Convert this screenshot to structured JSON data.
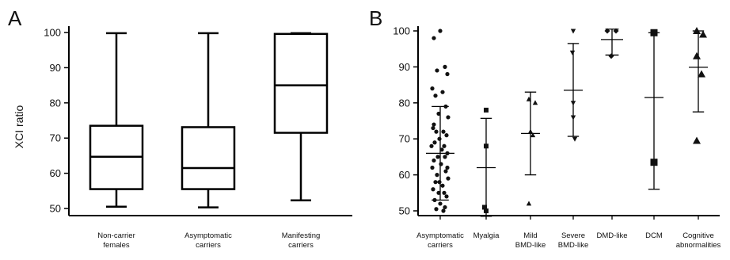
{
  "chart_data": [
    {
      "panel": "A",
      "type": "box",
      "ylabel": "XCI ratio",
      "ylim": [
        47,
        101
      ],
      "yticks": [
        50,
        60,
        70,
        80,
        90,
        100
      ],
      "categories": [
        [
          "Non-carrier",
          "females"
        ],
        [
          "Asymptomatic",
          "carriers"
        ],
        [
          "Manifesting",
          "carriers"
        ]
      ],
      "boxes": [
        {
          "min": 50.5,
          "q1": 55.5,
          "median": 64.7,
          "q3": 73.5,
          "max": 99.8
        },
        {
          "min": 50.3,
          "q1": 55.5,
          "median": 61.5,
          "q3": 73.1,
          "max": 99.8
        },
        {
          "min": 52.3,
          "q1": 71.5,
          "median": 85.0,
          "q3": 99.6,
          "max": 99.8
        }
      ],
      "grid": false
    },
    {
      "panel": "B",
      "type": "scatter",
      "ylim": [
        47,
        101
      ],
      "yticks": [
        50,
        60,
        70,
        80,
        90,
        100
      ],
      "categories": [
        [
          "Asymptomatic",
          "carriers"
        ],
        [
          "Myalgia"
        ],
        [
          "Mild",
          "BMD-like"
        ],
        [
          "Severe",
          "BMD-like"
        ],
        [
          "DMD-like"
        ],
        [
          "DCM"
        ],
        [
          "Cognitive",
          "abnormalities"
        ]
      ],
      "series": [
        {
          "marker": "circle",
          "mean": 66.0,
          "upper": 79.0,
          "lower": 53.0,
          "values": [
            100,
            98,
            90,
            89,
            88,
            84,
            83,
            82,
            79,
            77,
            76,
            73,
            72,
            72,
            71,
            70,
            69,
            68,
            68,
            67,
            66,
            65,
            65,
            64,
            63,
            62,
            61,
            60,
            59,
            58,
            57,
            56,
            55,
            55,
            54,
            53,
            52,
            51,
            50.5,
            50,
            74,
            62,
            58
          ]
        },
        {
          "marker": "square",
          "mean": 62.0,
          "upper": 75.7,
          "lower": 48.5,
          "values": [
            78,
            68,
            51,
            50
          ]
        },
        {
          "marker": "triangle-up",
          "mean": 71.5,
          "upper": 83.0,
          "lower": 60.0,
          "values": [
            81,
            80,
            72,
            71,
            52
          ]
        },
        {
          "marker": "triangle-down",
          "mean": 83.5,
          "upper": 96.5,
          "lower": 70.7,
          "values": [
            100,
            94,
            80,
            76,
            70
          ]
        },
        {
          "marker": "diamond",
          "mean": 97.6,
          "upper": 100.5,
          "lower": 93.3,
          "values": [
            100,
            100,
            93
          ]
        },
        {
          "marker": "square-large",
          "mean": 81.5,
          "upper": 99.5,
          "lower": 56.0,
          "values": [
            99.5,
            63.5
          ]
        },
        {
          "marker": "triangle-large",
          "mean": 89.9,
          "upper": 100.0,
          "lower": 77.5,
          "values": [
            100,
            99,
            93,
            88,
            69.5
          ]
        }
      ],
      "grid": false
    }
  ]
}
